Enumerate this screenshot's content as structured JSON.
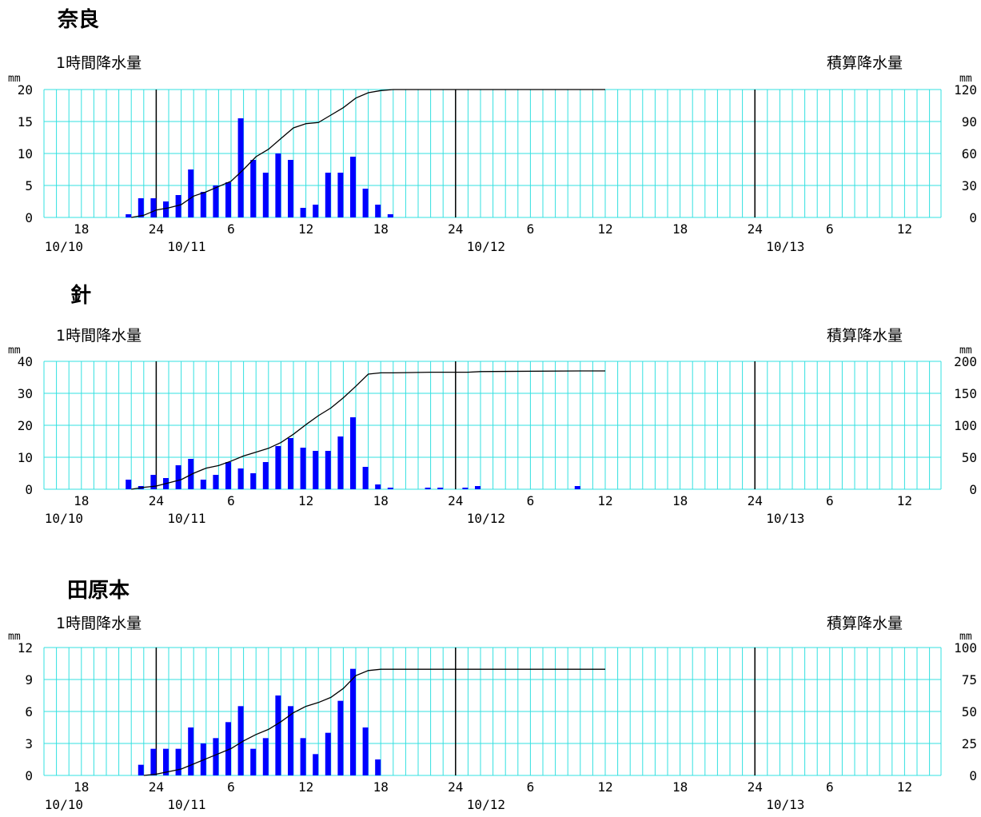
{
  "labels": {
    "hourly": "1時間降水量",
    "cumulative": "積算降水量",
    "unit": "mm"
  },
  "time_axis": {
    "hour_ticks": [
      "18",
      "24",
      "6",
      "12",
      "18",
      "24",
      "6",
      "12",
      "18",
      "24",
      "6",
      "12"
    ],
    "date_labels": [
      "10/10",
      "10/11",
      "10/12",
      "10/13"
    ]
  },
  "colors": {
    "grid": "#33e0e0",
    "bar": "#0000ff",
    "line": "#000000"
  },
  "chart_data": [
    {
      "type": "bar",
      "title": "奈良",
      "ylabel": "1時間降水量",
      "y2label": "積算降水量",
      "unit": "mm",
      "ylim": [
        0,
        20
      ],
      "y2lim": [
        0,
        120
      ],
      "yticks": [
        "0",
        "5",
        "10",
        "15",
        "20"
      ],
      "y2ticks": [
        "0",
        "30",
        "60",
        "90",
        "120"
      ],
      "series": [
        {
          "type": "bar",
          "points": [
            [
              22,
              0.5
            ],
            [
              23,
              3
            ],
            [
              24,
              3
            ],
            [
              25,
              2.5
            ],
            [
              26,
              3.5
            ],
            [
              27,
              7.5
            ],
            [
              28,
              4
            ],
            [
              29,
              5
            ],
            [
              30,
              5.5
            ],
            [
              31,
              15.5
            ],
            [
              32,
              9
            ],
            [
              33,
              7
            ],
            [
              34,
              10
            ],
            [
              35,
              9
            ],
            [
              36,
              1.5
            ],
            [
              37,
              2
            ],
            [
              38,
              7
            ],
            [
              39,
              7
            ],
            [
              40,
              9.5
            ],
            [
              41,
              4.5
            ],
            [
              42,
              2
            ],
            [
              43,
              0.5
            ]
          ]
        },
        {
          "type": "line",
          "points": [
            [
              22,
              0
            ],
            [
              23,
              2
            ],
            [
              24,
              7
            ],
            [
              25,
              9
            ],
            [
              26,
              12
            ],
            [
              27,
              20
            ],
            [
              28,
              24
            ],
            [
              29,
              29
            ],
            [
              30,
              34
            ],
            [
              31,
              45
            ],
            [
              32,
              57
            ],
            [
              33,
              64
            ],
            [
              34,
              74
            ],
            [
              35,
              84
            ],
            [
              36,
              88
            ],
            [
              37,
              89
            ],
            [
              38,
              96
            ],
            [
              39,
              103
            ],
            [
              40,
              112
            ],
            [
              41,
              117
            ],
            [
              42,
              119
            ],
            [
              43,
              120
            ],
            [
              44,
              120
            ],
            [
              60,
              120
            ]
          ]
        }
      ]
    },
    {
      "type": "bar",
      "title": "針",
      "ylabel": "1時間降水量",
      "y2label": "積算降水量",
      "unit": "mm",
      "ylim": [
        0,
        40
      ],
      "y2lim": [
        0,
        200
      ],
      "yticks": [
        "0",
        "10",
        "20",
        "30",
        "40"
      ],
      "y2ticks": [
        "0",
        "50",
        "100",
        "150",
        "200"
      ],
      "series": [
        {
          "type": "bar",
          "points": [
            [
              22,
              3
            ],
            [
              23,
              1
            ],
            [
              24,
              4.5
            ],
            [
              25,
              3.5
            ],
            [
              26,
              7.5
            ],
            [
              27,
              9.5
            ],
            [
              28,
              3
            ],
            [
              29,
              4.5
            ],
            [
              30,
              8.5
            ],
            [
              31,
              6.5
            ],
            [
              32,
              5
            ],
            [
              33,
              8.5
            ],
            [
              34,
              13.5
            ],
            [
              35,
              16
            ],
            [
              36,
              13
            ],
            [
              37,
              12
            ],
            [
              38,
              12
            ],
            [
              39,
              16.5
            ],
            [
              40,
              22.5
            ],
            [
              41,
              7
            ],
            [
              42,
              1.5
            ],
            [
              43,
              0.5
            ],
            [
              46,
              0.5
            ],
            [
              47,
              0.5
            ],
            [
              49,
              0.5
            ],
            [
              50,
              1
            ],
            [
              58,
              1
            ]
          ]
        },
        {
          "type": "line",
          "points": [
            [
              22,
              0
            ],
            [
              23,
              3
            ],
            [
              24,
              5
            ],
            [
              25,
              10
            ],
            [
              26,
              15
            ],
            [
              27,
              25
            ],
            [
              28,
              33
            ],
            [
              29,
              37
            ],
            [
              30,
              44
            ],
            [
              31,
              52
            ],
            [
              32,
              58
            ],
            [
              33,
              64
            ],
            [
              34,
              73
            ],
            [
              35,
              86
            ],
            [
              36,
              101
            ],
            [
              37,
              115
            ],
            [
              38,
              127
            ],
            [
              39,
              143
            ],
            [
              40,
              161
            ],
            [
              41,
              180
            ],
            [
              42,
              182
            ],
            [
              43,
              182
            ],
            [
              46,
              183
            ],
            [
              47,
              183
            ],
            [
              49,
              183
            ],
            [
              50,
              184
            ],
            [
              58,
              185
            ],
            [
              60,
              185
            ]
          ]
        }
      ]
    },
    {
      "type": "bar",
      "title": "田原本",
      "ylabel": "1時間降水量",
      "y2label": "積算降水量",
      "unit": "mm",
      "ylim": [
        0,
        12
      ],
      "y2lim": [
        0,
        100
      ],
      "yticks": [
        "0",
        "3",
        "6",
        "9",
        "12"
      ],
      "y2ticks": [
        "0",
        "25",
        "50",
        "75",
        "100"
      ],
      "series": [
        {
          "type": "bar",
          "points": [
            [
              23,
              1
            ],
            [
              24,
              2.5
            ],
            [
              25,
              2.5
            ],
            [
              26,
              2.5
            ],
            [
              27,
              4.5
            ],
            [
              28,
              3
            ],
            [
              29,
              3.5
            ],
            [
              30,
              5
            ],
            [
              31,
              6.5
            ],
            [
              32,
              2.5
            ],
            [
              33,
              3.5
            ],
            [
              34,
              7.5
            ],
            [
              35,
              6.5
            ],
            [
              36,
              3.5
            ],
            [
              37,
              2
            ],
            [
              38,
              4
            ],
            [
              39,
              7
            ],
            [
              40,
              10
            ],
            [
              41,
              4.5
            ],
            [
              42,
              1.5
            ]
          ]
        },
        {
          "type": "line",
          "points": [
            [
              23,
              0
            ],
            [
              24,
              1
            ],
            [
              25,
              3
            ],
            [
              26,
              5
            ],
            [
              27,
              9
            ],
            [
              28,
              13
            ],
            [
              29,
              17
            ],
            [
              30,
              21
            ],
            [
              31,
              27
            ],
            [
              32,
              32
            ],
            [
              33,
              36
            ],
            [
              34,
              42
            ],
            [
              35,
              49
            ],
            [
              36,
              54
            ],
            [
              37,
              57
            ],
            [
              38,
              61
            ],
            [
              39,
              68
            ],
            [
              40,
              78
            ],
            [
              41,
              82
            ],
            [
              42,
              83
            ],
            [
              60,
              83
            ]
          ]
        }
      ]
    }
  ]
}
